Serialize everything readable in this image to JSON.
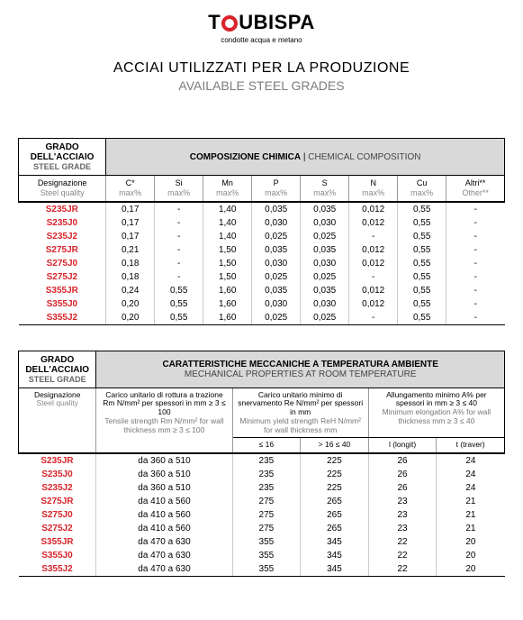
{
  "brand": {
    "prefix": "T",
    "suffix": "UBISPA",
    "tagline": "condotte acqua e metano"
  },
  "titles": {
    "it": "ACCIAI UTILIZZATI PER LA PRODUZIONE",
    "en": "AVAILABLE STEEL GRADES"
  },
  "table1": {
    "left_header_it": "GRADO DELL'ACCIAIO",
    "left_header_en": "STEEL GRADE",
    "right_header_it": "COMPOSIZIONE CHIMICA",
    "right_header_en": "CHEMICAL COMPOSITION",
    "col_designazione_it": "Designazione",
    "col_designazione_en": "Steel quality",
    "cols": [
      {
        "h": "C*",
        "s": "max%"
      },
      {
        "h": "Si",
        "s": "max%"
      },
      {
        "h": "Mn",
        "s": "max%"
      },
      {
        "h": "P",
        "s": "max%"
      },
      {
        "h": "S",
        "s": "max%"
      },
      {
        "h": "N",
        "s": "max%"
      },
      {
        "h": "Cu",
        "s": "max%"
      },
      {
        "h": "Altri**",
        "s": "Other**"
      }
    ],
    "rows": [
      {
        "g": "S235JR",
        "v": [
          "0,17",
          "-",
          "1,40",
          "0,035",
          "0,035",
          "0,012",
          "0,55",
          "-"
        ]
      },
      {
        "g": "S235J0",
        "v": [
          "0,17",
          "-",
          "1,40",
          "0,030",
          "0,030",
          "0,012",
          "0,55",
          "-"
        ]
      },
      {
        "g": "S235J2",
        "v": [
          "0,17",
          "-",
          "1,40",
          "0,025",
          "0,025",
          "-",
          "0,55",
          "-"
        ]
      },
      {
        "g": "S275JR",
        "v": [
          "0,21",
          "-",
          "1,50",
          "0,035",
          "0,035",
          "0,012",
          "0,55",
          "-"
        ]
      },
      {
        "g": "S275J0",
        "v": [
          "0,18",
          "-",
          "1,50",
          "0,030",
          "0,030",
          "0,012",
          "0,55",
          "-"
        ]
      },
      {
        "g": "S275J2",
        "v": [
          "0,18",
          "-",
          "1,50",
          "0,025",
          "0,025",
          "-",
          "0,55",
          "-"
        ]
      },
      {
        "g": "S355JR",
        "v": [
          "0,24",
          "0,55",
          "1,60",
          "0,035",
          "0,035",
          "0,012",
          "0,55",
          "-"
        ]
      },
      {
        "g": "S355J0",
        "v": [
          "0,20",
          "0,55",
          "1,60",
          "0,030",
          "0,030",
          "0,012",
          "0,55",
          "-"
        ]
      },
      {
        "g": "S355J2",
        "v": [
          "0,20",
          "0,55",
          "1,60",
          "0,025",
          "0,025",
          "-",
          "0,55",
          "-"
        ]
      }
    ],
    "col_widths": [
      "18%",
      "10%",
      "10%",
      "10%",
      "10%",
      "10%",
      "10%",
      "10%",
      "12%"
    ],
    "colors": {
      "header_bg": "#d9d9d9",
      "grade_color": "#d8232a",
      "grid": "#cccccc"
    }
  },
  "table2": {
    "left_header_it": "GRADO DELL'ACCIAIO",
    "left_header_en": "STEEL GRADE",
    "right_header_it": "CARATTERISTICHE MECCANICHE A TEMPERATURA AMBIENTE",
    "right_header_en": "MECHANICAL PROPERTIES AT ROOM TEMPERATURE",
    "col_designazione_it": "Designazione",
    "col_designazione_en": "Steel quality",
    "col_tensile_it": "Carico unitario di rottura a trazione Rm N/mm² per spessori in mm ≥ 3 ≤ 100",
    "col_tensile_en": "Tensile strength Rm N/mm² for wall thickness mm ≥ 3 ≤ 100",
    "col_yield_it": "Carico unitario minimo di snervamento Re N/mm² per spessori in mm",
    "col_yield_en": "Minimum yield strength ReH N/mm² for wall thickness mm",
    "col_elong_it": "Allungamento minimo A% per spessori in mm ≥ 3 ≤ 40",
    "col_elong_en": "Minimum elongation A% for wall thickness mm ≥ 3 ≤ 40",
    "yield_sub1": "≤ 16",
    "yield_sub2": "> 16 ≤ 40",
    "elong_sub1": "l (longit)",
    "elong_sub2": "t (traver)",
    "rows": [
      {
        "g": "S235JR",
        "t": "da 360 a 510",
        "y1": "235",
        "y2": "225",
        "e1": "26",
        "e2": "24"
      },
      {
        "g": "S235J0",
        "t": "da 360 a 510",
        "y1": "235",
        "y2": "225",
        "e1": "26",
        "e2": "24"
      },
      {
        "g": "S235J2",
        "t": "da 360 a 510",
        "y1": "235",
        "y2": "225",
        "e1": "26",
        "e2": "24"
      },
      {
        "g": "S275JR",
        "t": "da 410 a 560",
        "y1": "275",
        "y2": "265",
        "e1": "23",
        "e2": "21"
      },
      {
        "g": "S275J0",
        "t": "da 410 a 560",
        "y1": "275",
        "y2": "265",
        "e1": "23",
        "e2": "21"
      },
      {
        "g": "S275J2",
        "t": "da 410 a 560",
        "y1": "275",
        "y2": "265",
        "e1": "23",
        "e2": "21"
      },
      {
        "g": "S355JR",
        "t": "da 470 a 630",
        "y1": "355",
        "y2": "345",
        "e1": "22",
        "e2": "20"
      },
      {
        "g": "S355J0",
        "t": "da 470 a 630",
        "y1": "355",
        "y2": "345",
        "e1": "22",
        "e2": "20"
      },
      {
        "g": "S355J2",
        "t": "da 470 a 630",
        "y1": "355",
        "y2": "345",
        "e1": "22",
        "e2": "20"
      }
    ],
    "col_widths": [
      "16%",
      "28%",
      "14%",
      "14%",
      "14%",
      "14%"
    ]
  }
}
